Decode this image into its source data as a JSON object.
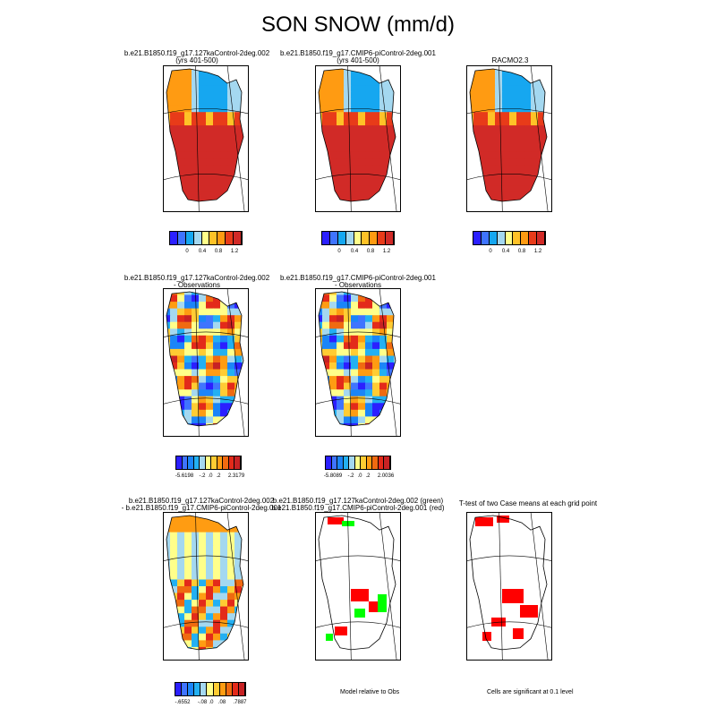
{
  "title": "SON SNOW (mm/d)",
  "colors": {
    "abs": [
      "#2b1fff",
      "#3f74ff",
      "#16a7f0",
      "#a4d8f0",
      "#ffff8a",
      "#ffc227",
      "#ff9b12",
      "#e83b19",
      "#d12a27"
    ],
    "diff": [
      "#2b1fff",
      "#3f74ff",
      "#1b85f8",
      "#23b0f2",
      "#a4d8f0",
      "#ffff8a",
      "#ffcc33",
      "#ff9c12",
      "#f06a10",
      "#e32a1a",
      "#c72224"
    ],
    "sig_case1": "#00ff00",
    "sig_case2": "#ff0000"
  },
  "panels": [
    {
      "id": "p1",
      "title1": "b.e21.B1850.f19_g17.127kaControl-2deg.002",
      "title2": "(yrs 401-500)",
      "colorbar": {
        "labels": [
          "0",
          "0.4",
          "0.8",
          "1.2"
        ]
      }
    },
    {
      "id": "p2",
      "title1": "b.e21.B1850.f19_g17.CMIP6-piControl-2deg.001",
      "title2": "(yrs 401-500)",
      "colorbar": {
        "labels": [
          "0",
          "0.4",
          "0.8",
          "1.2"
        ]
      }
    },
    {
      "id": "p3",
      "title1": "RACMO2.3",
      "title2": "",
      "colorbar": {
        "labels": [
          "0",
          "0.4",
          "0.8",
          "1.2"
        ]
      }
    },
    {
      "id": "p4",
      "title1": "b.e21.B1850.f19_g17.127kaControl-2deg.002",
      "title2": "- Observations",
      "colorbar": {
        "labels": [
          "-5.6198",
          "-.2",
          ".0",
          ".2",
          "2.3179"
        ]
      }
    },
    {
      "id": "p5",
      "title1": "b.e21.B1850.f19_g17.CMIP6-piControl-2deg.001",
      "title2": "- Observations",
      "colorbar": {
        "labels": [
          "-5.8089",
          "-.2",
          ".0",
          ".2",
          "2.0036"
        ]
      }
    },
    {
      "id": "p7",
      "title1": "b.e21.B1850.f19_g17.127kaControl-2deg.002",
      "title2": "- b.e21.B1850.f19_g17.CMIP6-piControl-2deg.001",
      "colorbar": {
        "labels": [
          "-.6552",
          "-.08",
          ".0",
          ".08",
          ".7887"
        ]
      }
    },
    {
      "id": "p8",
      "title1": "b.e21.B1850.f19_g17.127kaControl-2deg.002 (green)",
      "title2": "b.e21.B1850.f19_g17.CMIP6-piControl-2deg.001 (red)",
      "note": "Model relative to Obs"
    },
    {
      "id": "p9",
      "title1": "T-test of two Case means at each grid point",
      "title2": "",
      "note": "Cells are significant at 0.1 level"
    }
  ],
  "chart_data": [
    {
      "type": "heatmap",
      "panel": "p1",
      "variable": "SON SNOW",
      "units": "mm/d",
      "colorbar_ticks": [
        0,
        0.4,
        0.8,
        1.2
      ]
    },
    {
      "type": "heatmap",
      "panel": "p2",
      "variable": "SON SNOW",
      "units": "mm/d",
      "colorbar_ticks": [
        0,
        0.4,
        0.8,
        1.2
      ]
    },
    {
      "type": "heatmap",
      "panel": "p3",
      "variable": "SON SNOW",
      "units": "mm/d",
      "colorbar_ticks": [
        0,
        0.4,
        0.8,
        1.2
      ]
    },
    {
      "type": "heatmap",
      "panel": "p4",
      "variable": "SON SNOW difference",
      "colorbar_range": [
        -5.6198,
        2.3179
      ]
    },
    {
      "type": "heatmap",
      "panel": "p5",
      "variable": "SON SNOW difference",
      "colorbar_range": [
        -5.8089,
        2.0036
      ]
    },
    {
      "type": "heatmap",
      "panel": "p7",
      "variable": "SON SNOW difference",
      "colorbar_range": [
        -0.6552,
        0.7887
      ]
    },
    {
      "type": "heatmap",
      "panel": "p8",
      "variable": "significance vs Obs"
    },
    {
      "type": "heatmap",
      "panel": "p9",
      "variable": "t-test significance"
    }
  ]
}
